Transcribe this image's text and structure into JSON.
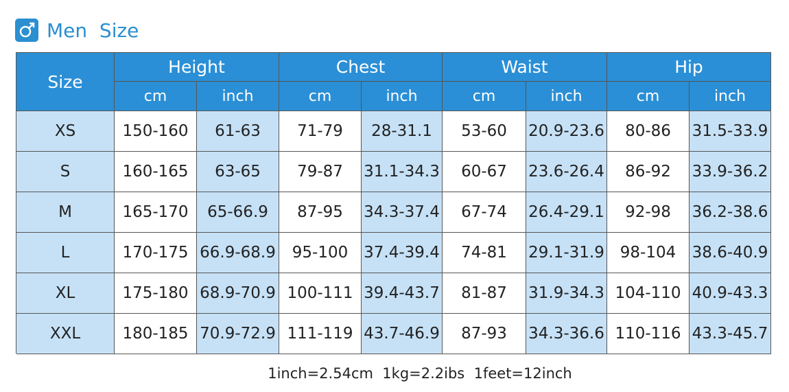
{
  "title": "Men  Size",
  "table": {
    "size_header": "Size",
    "groups": [
      {
        "name": "Height",
        "units": [
          "cm",
          "inch"
        ]
      },
      {
        "name": "Chest",
        "units": [
          "cm",
          "inch"
        ]
      },
      {
        "name": "Waist",
        "units": [
          "cm",
          "inch"
        ]
      },
      {
        "name": "Hip",
        "units": [
          "cm",
          "inch"
        ]
      }
    ],
    "rows": [
      [
        "XS",
        "150-160",
        "61-63",
        "71-79",
        "28-31.1",
        "53-60",
        "20.9-23.6",
        "80-86",
        "31.5-33.9"
      ],
      [
        "S",
        "160-165",
        "63-65",
        "79-87",
        "31.1-34.3",
        "60-67",
        "23.6-26.4",
        "86-92",
        "33.9-36.2"
      ],
      [
        "M",
        "165-170",
        "65-66.9",
        "87-95",
        "34.3-37.4",
        "67-74",
        "26.4-29.1",
        "92-98",
        "36.2-38.6"
      ],
      [
        "L",
        "170-175",
        "66.9-68.9",
        "95-100",
        "37.4-39.4",
        "74-81",
        "29.1-31.9",
        "98-104",
        "38.6-40.9"
      ],
      [
        "XL",
        "175-180",
        "68.9-70.9",
        "100-111",
        "39.4-43.7",
        "81-87",
        "31.9-34.3",
        "104-110",
        "40.9-43.3"
      ],
      [
        "XXL",
        "180-185",
        "70.9-72.9",
        "111-119",
        "43.7-46.9",
        "87-93",
        "34.3-36.6",
        "110-116",
        "43.3-45.7"
      ]
    ]
  },
  "footnote": "1inch=2.54cm  1kg=2.2ibs  1feet=12inch"
}
